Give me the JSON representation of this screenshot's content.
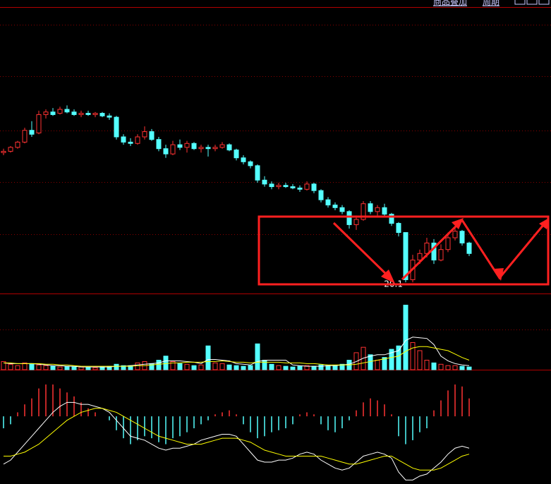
{
  "toolbar": {
    "items": [
      "商品叠加",
      "周期"
    ]
  },
  "chart_data": [
    {
      "type": "candlestick",
      "low_label": "20.1",
      "ylim": [
        19.3,
        41
      ],
      "colors": {
        "up": "#ff3232",
        "down": "#54ffff"
      },
      "open": [
        30.0,
        30.1,
        30.4,
        30.8,
        31.7,
        31.5,
        32.9,
        33.1,
        33.0,
        33.3,
        33.1,
        32.9,
        33.0,
        32.9,
        33.0,
        32.8,
        32.7,
        31.2,
        30.8,
        30.7,
        31.2,
        31.6,
        31.0,
        30.3,
        29.9,
        30.6,
        30.4,
        30.7,
        30.3,
        30.4,
        30.3,
        30.4,
        30.6,
        30.2,
        29.6,
        29.3,
        29.0,
        27.9,
        27.6,
        27.4,
        27.5,
        27.4,
        27.3,
        27.2,
        27.6,
        27.1,
        26.4,
        26.0,
        25.8,
        25.5,
        24.5,
        24.9,
        26.1,
        25.5,
        25.8,
        25.3,
        24.6,
        23.9,
        20.3,
        21.8,
        22.3,
        23.1,
        21.8,
        22.6,
        23.5,
        24.0,
        23.1
      ],
      "high": [
        30.3,
        30.5,
        30.9,
        31.9,
        32.4,
        33.2,
        33.3,
        33.4,
        33.5,
        33.6,
        33.3,
        33.2,
        33.2,
        33.1,
        33.1,
        33.0,
        32.8,
        31.4,
        31.1,
        31.4,
        32.0,
        31.8,
        31.2,
        30.6,
        30.9,
        31.0,
        30.9,
        30.8,
        30.6,
        30.6,
        30.6,
        30.8,
        30.7,
        30.3,
        29.8,
        29.4,
        29.1,
        28.2,
        27.8,
        27.7,
        27.7,
        27.6,
        27.5,
        27.8,
        27.7,
        27.2,
        26.6,
        26.2,
        26.0,
        25.6,
        25.2,
        26.3,
        26.3,
        26.0,
        26.1,
        25.4,
        24.7,
        23.9,
        22.2,
        22.6,
        23.5,
        23.4,
        23.0,
        23.9,
        24.3,
        24.1,
        23.2
      ],
      "low": [
        29.8,
        30.0,
        30.3,
        30.7,
        31.2,
        31.4,
        32.6,
        32.8,
        32.9,
        33.0,
        32.8,
        32.7,
        32.8,
        32.7,
        32.7,
        32.5,
        31.0,
        30.6,
        30.5,
        30.6,
        31.0,
        30.9,
        30.1,
        29.6,
        29.8,
        30.2,
        30.0,
        30.2,
        30.0,
        29.7,
        30.1,
        30.3,
        30.1,
        29.4,
        29.1,
        28.8,
        27.7,
        27.4,
        27.2,
        27.2,
        27.3,
        27.2,
        27.0,
        27.1,
        26.9,
        26.2,
        25.8,
        25.6,
        25.3,
        24.2,
        24.1,
        24.8,
        25.3,
        25.2,
        25.1,
        24.4,
        23.6,
        20.1,
        20.1,
        21.5,
        22.0,
        21.5,
        21.7,
        22.4,
        23.3,
        22.9,
        22.1
      ],
      "close": [
        30.1,
        30.4,
        30.8,
        31.7,
        31.4,
        32.9,
        33.1,
        32.9,
        33.3,
        33.1,
        32.9,
        33.0,
        32.9,
        33.0,
        32.8,
        32.7,
        31.2,
        30.8,
        30.7,
        31.2,
        31.6,
        31.0,
        30.3,
        29.9,
        30.6,
        30.4,
        30.7,
        30.3,
        30.4,
        30.3,
        30.4,
        30.6,
        30.2,
        29.6,
        29.3,
        29.0,
        27.9,
        27.6,
        27.4,
        27.5,
        27.4,
        27.3,
        27.2,
        27.6,
        27.1,
        26.4,
        26.0,
        25.8,
        25.5,
        24.5,
        24.9,
        26.1,
        25.5,
        25.8,
        25.3,
        24.6,
        23.9,
        20.3,
        21.8,
        22.3,
        23.1,
        21.8,
        22.6,
        23.5,
        24.0,
        23.1,
        22.3
      ]
    },
    {
      "type": "volume",
      "ylim": [
        0,
        110
      ],
      "values": [
        12,
        8,
        6,
        10,
        9,
        7,
        6,
        5,
        4,
        5,
        4,
        4,
        3,
        3,
        4,
        5,
        8,
        6,
        6,
        10,
        12,
        9,
        14,
        20,
        12,
        9,
        8,
        6,
        7,
        35,
        10,
        9,
        7,
        6,
        5,
        6,
        38,
        14,
        8,
        6,
        5,
        4,
        5,
        6,
        5,
        7,
        6,
        6,
        8,
        14,
        25,
        33,
        22,
        14,
        18,
        30,
        35,
        95,
        40,
        28,
        14,
        10,
        8,
        6,
        6,
        5,
        4
      ],
      "lines": [
        {
          "color": "#ffffff",
          "values": [
            10,
            9,
            9,
            9,
            9,
            8,
            7,
            6,
            6,
            5,
            5,
            4,
            4,
            4,
            4,
            4,
            5,
            5,
            6,
            7,
            8,
            9,
            10,
            13,
            13,
            13,
            12,
            11,
            9,
            15,
            15,
            14,
            13,
            9,
            8,
            7,
            12,
            14,
            14,
            14,
            14,
            7,
            6,
            5,
            5,
            5,
            6,
            6,
            7,
            8,
            12,
            17,
            20,
            22,
            22,
            25,
            28,
            43,
            48,
            47,
            46,
            37,
            20,
            13,
            9,
            7,
            6
          ]
        },
        {
          "color": "#ffff00",
          "values": [
            10,
            10,
            9,
            9,
            9,
            9,
            8,
            8,
            7,
            7,
            6,
            5,
            5,
            5,
            5,
            5,
            5,
            5,
            5,
            6,
            6,
            7,
            8,
            9,
            10,
            10,
            11,
            11,
            11,
            12,
            12,
            13,
            12,
            11,
            11,
            10,
            11,
            11,
            11,
            11,
            10,
            10,
            10,
            9,
            9,
            8,
            7,
            7,
            7,
            7,
            8,
            10,
            12,
            14,
            16,
            18,
            20,
            27,
            32,
            34,
            34,
            32,
            30,
            28,
            23,
            18,
            14
          ]
        }
      ]
    },
    {
      "type": "macd",
      "ylim": [
        -1.7,
        1.1
      ],
      "colors": {
        "up": "#ff3232",
        "down": "#54ffff"
      },
      "values": [
        -0.3,
        -0.2,
        0.1,
        0.3,
        0.45,
        0.7,
        0.8,
        0.8,
        0.7,
        0.6,
        0.5,
        0.35,
        0.2,
        0.1,
        0.0,
        -0.1,
        -0.35,
        -0.55,
        -0.7,
        -0.6,
        -0.5,
        -0.55,
        -0.65,
        -0.7,
        -0.55,
        -0.5,
        -0.4,
        -0.3,
        -0.2,
        -0.1,
        0.05,
        0.1,
        0.15,
        0.05,
        -0.2,
        -0.4,
        -0.55,
        -0.5,
        -0.4,
        -0.35,
        -0.3,
        -0.2,
        0.05,
        0.1,
        0.05,
        -0.2,
        -0.35,
        -0.4,
        -0.3,
        -0.1,
        0.15,
        0.35,
        0.45,
        0.4,
        0.3,
        0.05,
        -0.5,
        -0.7,
        -0.6,
        -0.4,
        -0.3,
        0.15,
        0.4,
        0.65,
        0.8,
        0.75,
        0.45
      ],
      "lines": [
        {
          "color": "#ffffff",
          "values": [
            -1.2,
            -1.1,
            -0.9,
            -0.7,
            -0.5,
            -0.3,
            -0.1,
            0.1,
            0.25,
            0.35,
            0.35,
            0.3,
            0.3,
            0.25,
            0.2,
            0.1,
            -0.1,
            -0.3,
            -0.5,
            -0.55,
            -0.6,
            -0.7,
            -0.8,
            -0.85,
            -0.8,
            -0.8,
            -0.75,
            -0.7,
            -0.6,
            -0.55,
            -0.5,
            -0.45,
            -0.45,
            -0.5,
            -0.7,
            -0.9,
            -1.1,
            -1.15,
            -1.15,
            -1.1,
            -1.1,
            -1.05,
            -0.95,
            -0.9,
            -0.95,
            -1.1,
            -1.2,
            -1.3,
            -1.35,
            -1.3,
            -1.15,
            -1.0,
            -0.95,
            -0.9,
            -0.95,
            -1.05,
            -1.4,
            -1.6,
            -1.6,
            -1.5,
            -1.45,
            -1.3,
            -1.15,
            -0.95,
            -0.8,
            -0.75,
            -0.8
          ]
        },
        {
          "color": "#ffff00",
          "values": [
            -1.0,
            -1.0,
            -0.95,
            -0.9,
            -0.8,
            -0.7,
            -0.55,
            -0.4,
            -0.25,
            -0.1,
            0.0,
            0.1,
            0.15,
            0.2,
            0.2,
            0.15,
            0.1,
            0.0,
            -0.1,
            -0.2,
            -0.3,
            -0.4,
            -0.5,
            -0.55,
            -0.6,
            -0.65,
            -0.7,
            -0.7,
            -0.7,
            -0.65,
            -0.6,
            -0.55,
            -0.55,
            -0.55,
            -0.6,
            -0.65,
            -0.75,
            -0.85,
            -0.9,
            -0.95,
            -1.0,
            -1.0,
            -1.0,
            -1.0,
            -1.0,
            -1.0,
            -1.05,
            -1.1,
            -1.15,
            -1.2,
            -1.2,
            -1.15,
            -1.1,
            -1.05,
            -1.0,
            -1.0,
            -1.1,
            -1.2,
            -1.3,
            -1.35,
            -1.35,
            -1.35,
            -1.3,
            -1.2,
            -1.1,
            -1.0,
            -0.95
          ]
        }
      ]
    }
  ]
}
